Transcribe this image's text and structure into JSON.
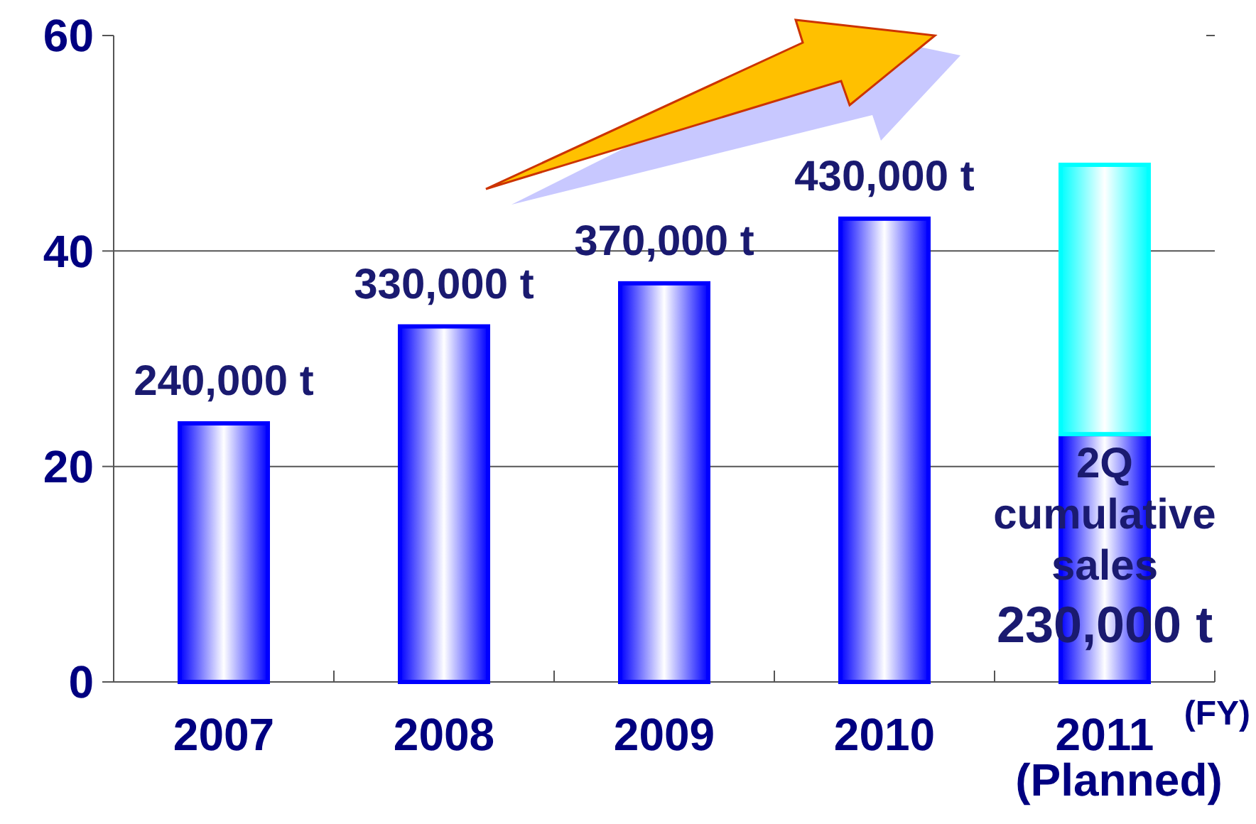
{
  "chart_data": {
    "type": "bar",
    "stacked": true,
    "categories": [
      "2007",
      "2008",
      "2009",
      "2010",
      "2011 (Planned)"
    ],
    "xlabel": "(FY)",
    "series": [
      {
        "color": "#0000ff",
        "values": [
          24,
          33,
          37,
          43,
          23
        ]
      },
      {
        "color": "#00ffff",
        "values": [
          null,
          null,
          null,
          null,
          25
        ]
      }
    ],
    "ylim": [
      0,
      60
    ],
    "yticks": [
      0,
      20,
      40,
      60
    ],
    "grid": "y",
    "annotations": [
      {
        "text": "240,000 t",
        "x": "2007",
        "y": 24
      },
      {
        "text": "330,000 t",
        "x": "2008",
        "y": 33
      },
      {
        "text": "370,000 t",
        "x": "2009",
        "y": 37
      },
      {
        "text": "430,000 t",
        "x": "2010",
        "y": 43
      },
      "2Q cumulative sales",
      "230,000 t"
    ]
  }
}
